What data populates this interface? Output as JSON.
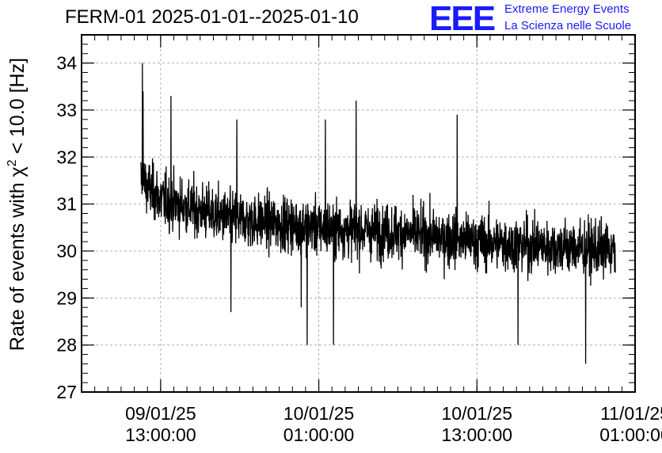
{
  "header": {
    "title": "FERM-01 2025-01-01--2025-01-10",
    "logo_text": "EEE",
    "org_line1": "Extreme Energy Events",
    "org_line2": "La Scienza nelle Scuole"
  },
  "colors": {
    "brand": "#1a1aff",
    "line": "#000000",
    "grid": "#b0b0b0"
  },
  "chart_data": {
    "type": "line",
    "title": "FERM-01 2025-01-01--2025-01-10",
    "ylabel_prefix": "Rate of events with ",
    "ylabel_chi": "χ",
    "ylabel_sup": "2",
    "ylabel_suffix": " < 10.0 [Hz]",
    "xlabel": "",
    "ylim": [
      27,
      34.6
    ],
    "yticks": [
      27,
      28,
      29,
      30,
      31,
      32,
      33,
      34
    ],
    "xlim": [
      "2025-01-09 07:00:00",
      "2025-01-11 01:00:00"
    ],
    "xticks": [
      {
        "x": "2025-01-09 13:00:00",
        "line1": "09/01/25",
        "line2": "13:00:00"
      },
      {
        "x": "2025-01-10 01:00:00",
        "line1": "10/01/25",
        "line2": "01:00:00"
      },
      {
        "x": "2025-01-10 13:00:00",
        "line1": "10/01/25",
        "line2": "13:00:00"
      },
      {
        "x": "2025-01-11 01:00:00",
        "line1": "11/01/25",
        "line2": "01:00:00"
      }
    ],
    "grid": true,
    "series": [
      {
        "style": "noisy time series",
        "x_start": "2025-01-09 11:30:00",
        "x_end": "2025-01-10 23:30:00",
        "trend": [
          {
            "x": "2025-01-09 11:30:00",
            "y": 31.5
          },
          {
            "x": "2025-01-09 13:00:00",
            "y": 31.1
          },
          {
            "x": "2025-01-09 18:00:00",
            "y": 30.7
          },
          {
            "x": "2025-01-10 01:00:00",
            "y": 30.5
          },
          {
            "x": "2025-01-10 07:00:00",
            "y": 30.4
          },
          {
            "x": "2025-01-10 13:00:00",
            "y": 30.2
          },
          {
            "x": "2025-01-10 23:30:00",
            "y": 30.0
          }
        ],
        "spread_hz": 0.75,
        "peaks": [
          {
            "x": "2025-01-09 11:37:00",
            "y": 34.0
          },
          {
            "x": "2025-01-09 11:40:00",
            "y": 33.4
          },
          {
            "x": "2025-01-09 13:47:00",
            "y": 33.3
          },
          {
            "x": "2025-01-09 18:47:00",
            "y": 32.8
          },
          {
            "x": "2025-01-10 03:50:00",
            "y": 33.2
          },
          {
            "x": "2025-01-10 11:30:00",
            "y": 32.9
          },
          {
            "x": "2025-01-10 01:30:00",
            "y": 32.8
          }
        ],
        "troughs": [
          {
            "x": "2025-01-09 18:20:00",
            "y": 28.7
          },
          {
            "x": "2025-01-09 23:40:00",
            "y": 28.8
          },
          {
            "x": "2025-01-10 00:07:00",
            "y": 28.0
          },
          {
            "x": "2025-01-10 02:07:00",
            "y": 28.0
          },
          {
            "x": "2025-01-10 16:07:00",
            "y": 28.0
          },
          {
            "x": "2025-01-10 21:15:00",
            "y": 27.6
          }
        ]
      }
    ]
  }
}
